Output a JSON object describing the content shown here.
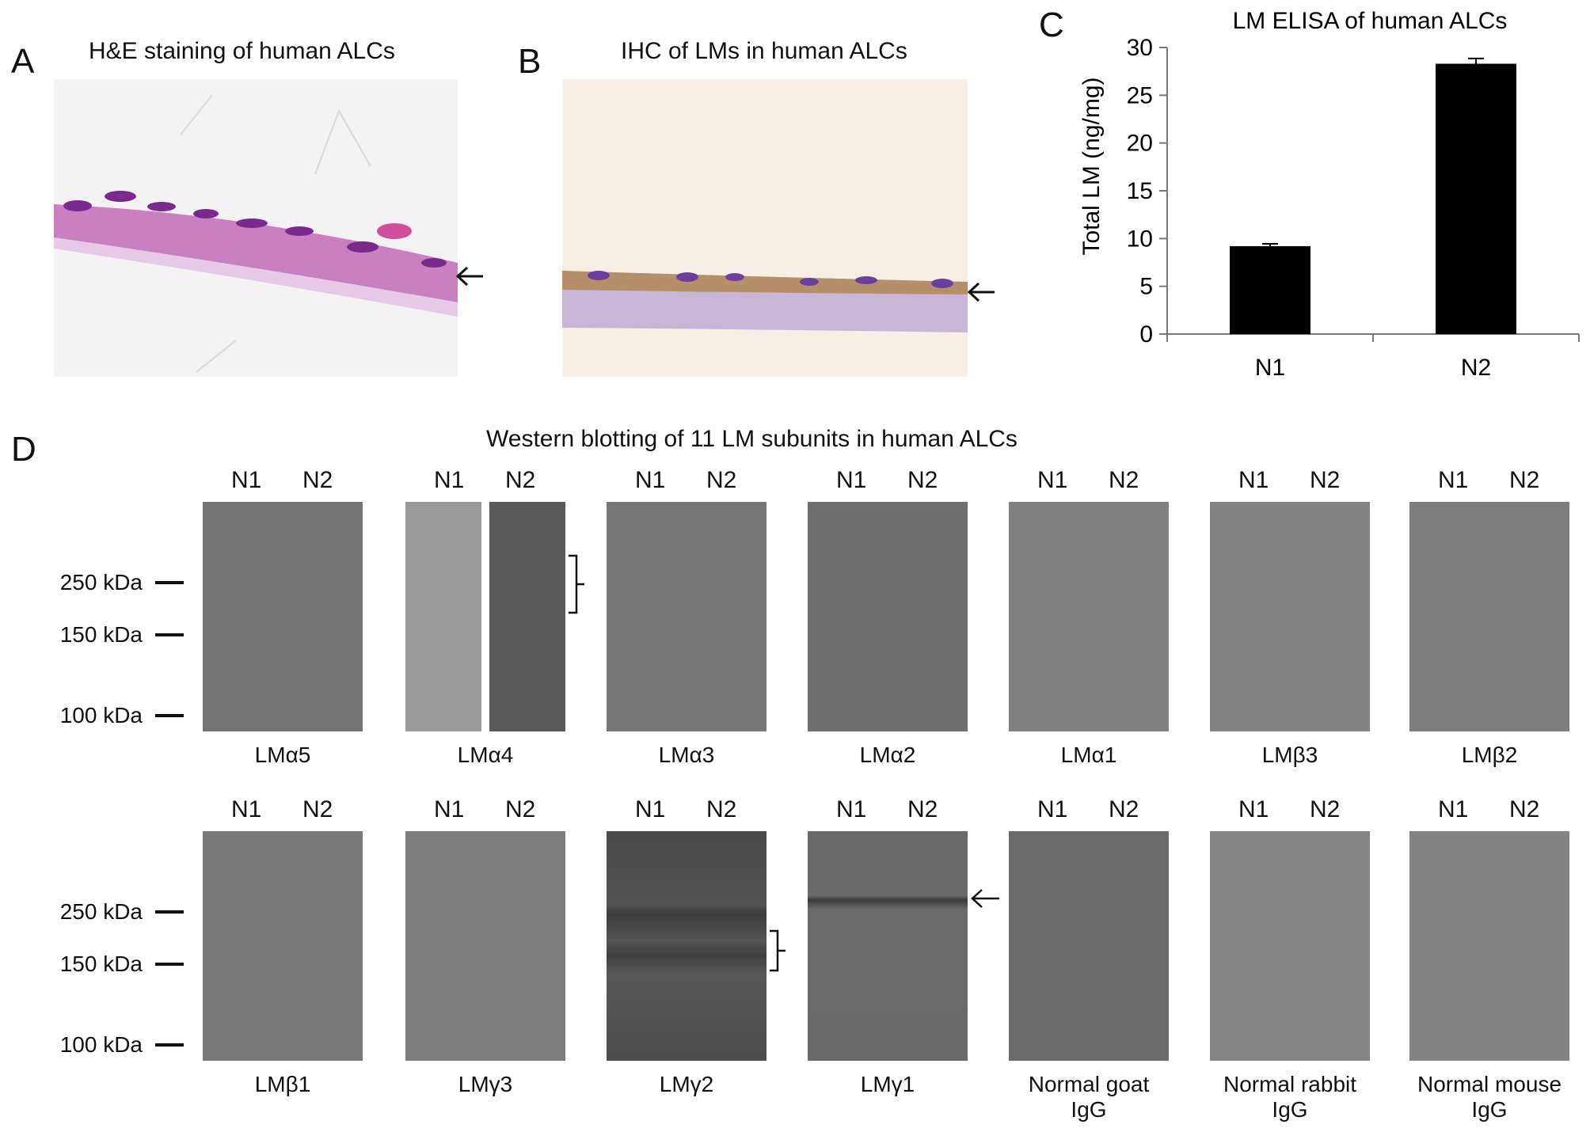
{
  "panels": {
    "A": {
      "label": "A",
      "title": "H&E staining of human ALCs"
    },
    "B": {
      "label": "B",
      "title": "IHC of LMs in human ALCs"
    },
    "C": {
      "label": "C",
      "title": "LM ELISA of human ALCs"
    },
    "D": {
      "label": "D",
      "title": "Western blotting of 11 LM subunits in human ALCs"
    }
  },
  "chart_data": {
    "type": "bar",
    "title": "LM ELISA of human ALCs",
    "categories": [
      "N1",
      "N2"
    ],
    "values": [
      9.2,
      28.3
    ],
    "errors": [
      0.25,
      0.55
    ],
    "xlabel": "",
    "ylabel": "Total LM (ng/mg)",
    "ylim": [
      0,
      30
    ],
    "yticks": [
      0,
      5,
      10,
      15,
      20,
      25,
      30
    ],
    "bar_color": "#000000",
    "grid": false
  },
  "lanes": {
    "n1": "N1",
    "n2": "N2"
  },
  "markers": {
    "m250": "250 kDa",
    "m150": "150 kDa",
    "m100": "100 kDa"
  },
  "rows": [
    {
      "blots": [
        {
          "name": "LMα5",
          "line2": ""
        },
        {
          "name": "LMα4",
          "line2": ""
        },
        {
          "name": "LMα3",
          "line2": ""
        },
        {
          "name": "LMα2",
          "line2": ""
        },
        {
          "name": "LMα1",
          "line2": ""
        },
        {
          "name": "LMβ3",
          "line2": ""
        },
        {
          "name": "LMβ2",
          "line2": ""
        }
      ]
    },
    {
      "blots": [
        {
          "name": "LMβ1",
          "line2": ""
        },
        {
          "name": "LMγ3",
          "line2": ""
        },
        {
          "name": "LMγ2",
          "line2": ""
        },
        {
          "name": "LMγ1",
          "line2": ""
        },
        {
          "name": "Normal goat",
          "line2": "IgG"
        },
        {
          "name": "Normal rabbit",
          "line2": "IgG"
        },
        {
          "name": "Normal mouse",
          "line2": "IgG"
        }
      ]
    }
  ],
  "colors": {
    "he_stain": "#c46ab8",
    "nuclei": "#7a2a8c",
    "dab": "#b58f6a",
    "blot_gray": "#787878"
  }
}
